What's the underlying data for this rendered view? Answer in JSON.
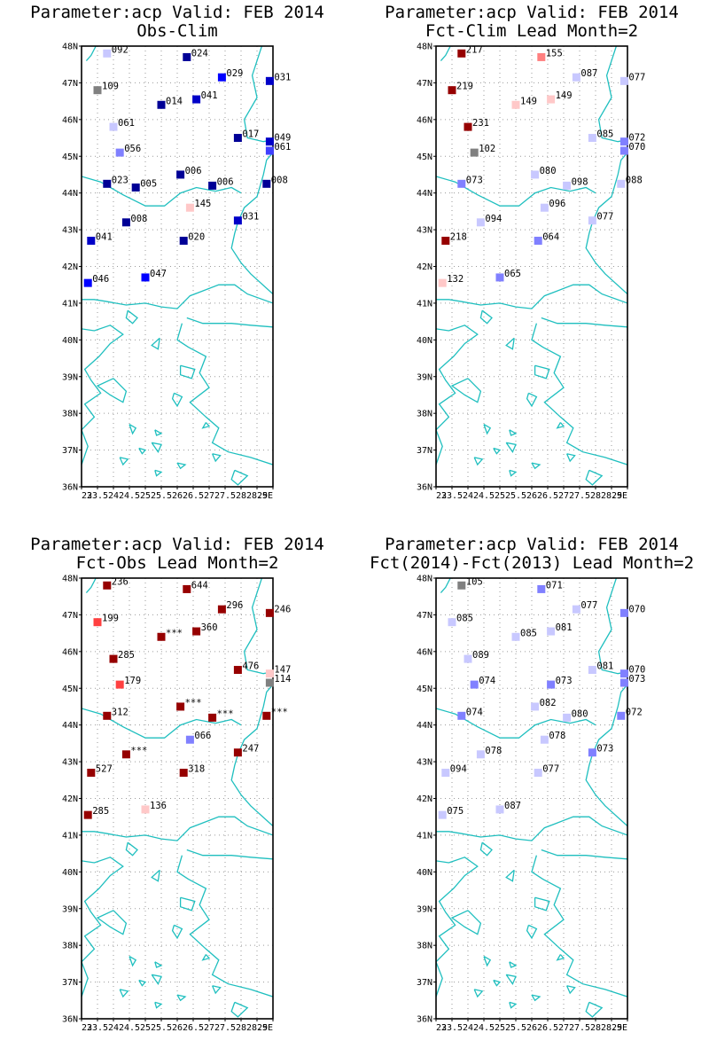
{
  "lat_ticks": [
    "48N",
    "47N",
    "46N",
    "45N",
    "44N",
    "43N",
    "42N",
    "41N",
    "40N",
    "39N",
    "38N",
    "37N",
    "36N"
  ],
  "lon_ticks": [
    "23",
    "23.5",
    "24",
    "24.5",
    "25",
    "25.5",
    "26",
    "26.5",
    "27",
    "27.5",
    "28",
    "28.5",
    "29E"
  ],
  "panels": [
    {
      "title1": "Parameter:acp Valid: FEB 2014",
      "title2": "Obs-Clim",
      "stations": [
        {
          "lon": 23.8,
          "lat": 47.8,
          "label": "092",
          "color": "#c8c8ff"
        },
        {
          "lon": 23.5,
          "lat": 46.8,
          "label": "109",
          "color": "#808080"
        },
        {
          "lon": 24.0,
          "lat": 45.8,
          "label": "061",
          "color": "#c8c8ff"
        },
        {
          "lon": 24.2,
          "lat": 45.1,
          "label": "056",
          "color": "#8080ff"
        },
        {
          "lon": 23.8,
          "lat": 44.25,
          "label": "023",
          "color": "#000096"
        },
        {
          "lon": 24.4,
          "lat": 43.2,
          "label": "008",
          "color": "#000096"
        },
        {
          "lon": 23.3,
          "lat": 42.7,
          "label": "041",
          "color": "#0000c8"
        },
        {
          "lon": 23.2,
          "lat": 41.55,
          "label": "046",
          "color": "#0000ff"
        },
        {
          "lon": 25.0,
          "lat": 41.7,
          "label": "047",
          "color": "#0000ff"
        },
        {
          "lon": 24.7,
          "lat": 44.15,
          "label": "005",
          "color": "#000096"
        },
        {
          "lon": 25.5,
          "lat": 46.4,
          "label": "014",
          "color": "#000096"
        },
        {
          "lon": 26.3,
          "lat": 47.7,
          "label": "024",
          "color": "#000096"
        },
        {
          "lon": 26.6,
          "lat": 46.55,
          "label": "041",
          "color": "#0000c8"
        },
        {
          "lon": 26.1,
          "lat": 44.5,
          "label": "006",
          "color": "#000096"
        },
        {
          "lon": 26.4,
          "lat": 43.6,
          "label": "145",
          "color": "#ffc8c8"
        },
        {
          "lon": 26.2,
          "lat": 42.7,
          "label": "020",
          "color": "#000096"
        },
        {
          "lon": 27.1,
          "lat": 44.2,
          "label": "006",
          "color": "#000096"
        },
        {
          "lon": 27.4,
          "lat": 47.15,
          "label": "029",
          "color": "#0000ff"
        },
        {
          "lon": 27.9,
          "lat": 45.5,
          "label": "017",
          "color": "#000096"
        },
        {
          "lon": 27.9,
          "lat": 43.25,
          "label": "031",
          "color": "#0000c8"
        },
        {
          "lon": 28.8,
          "lat": 44.25,
          "label": "008",
          "color": "#000096"
        },
        {
          "lon": 28.9,
          "lat": 47.05,
          "label": "031",
          "color": "#0000c8"
        },
        {
          "lon": 28.9,
          "lat": 45.4,
          "label": "049",
          "color": "#0000c8"
        },
        {
          "lon": 28.9,
          "lat": 45.15,
          "label": "061",
          "color": "#4040ff"
        }
      ]
    },
    {
      "title1": "Parameter:acp Valid: FEB 2014",
      "title2": "Fct-Clim Lead Month=2",
      "stations": [
        {
          "lon": 23.8,
          "lat": 47.8,
          "label": "217",
          "color": "#960000"
        },
        {
          "lon": 23.5,
          "lat": 46.8,
          "label": "219",
          "color": "#960000"
        },
        {
          "lon": 24.0,
          "lat": 45.8,
          "label": "231",
          "color": "#960000"
        },
        {
          "lon": 24.2,
          "lat": 45.1,
          "label": "102",
          "color": "#808080"
        },
        {
          "lon": 23.8,
          "lat": 44.25,
          "label": "073",
          "color": "#8080ff"
        },
        {
          "lon": 24.4,
          "lat": 43.2,
          "label": "094",
          "color": "#c8c8ff"
        },
        {
          "lon": 23.3,
          "lat": 42.7,
          "label": "218",
          "color": "#960000"
        },
        {
          "lon": 23.2,
          "lat": 41.55,
          "label": "132",
          "color": "#ffc8c8"
        },
        {
          "lon": 25.0,
          "lat": 41.7,
          "label": "065",
          "color": "#8080ff"
        },
        {
          "lon": 25.5,
          "lat": 46.4,
          "label": "149",
          "color": "#ffc8c8"
        },
        {
          "lon": 26.3,
          "lat": 47.7,
          "label": "155",
          "color": "#ff8080"
        },
        {
          "lon": 26.6,
          "lat": 46.55,
          "label": "149",
          "color": "#ffc8c8"
        },
        {
          "lon": 26.1,
          "lat": 44.5,
          "label": "080",
          "color": "#c8c8ff"
        },
        {
          "lon": 26.4,
          "lat": 43.6,
          "label": "096",
          "color": "#c8c8ff"
        },
        {
          "lon": 26.2,
          "lat": 42.7,
          "label": "064",
          "color": "#8080ff"
        },
        {
          "lon": 27.1,
          "lat": 44.2,
          "label": "098",
          "color": "#c8c8ff"
        },
        {
          "lon": 27.4,
          "lat": 47.15,
          "label": "087",
          "color": "#c8c8ff"
        },
        {
          "lon": 27.9,
          "lat": 45.5,
          "label": "085",
          "color": "#c8c8ff"
        },
        {
          "lon": 27.9,
          "lat": 43.25,
          "label": "077",
          "color": "#c8c8ff"
        },
        {
          "lon": 28.8,
          "lat": 44.25,
          "label": "088",
          "color": "#c8c8ff"
        },
        {
          "lon": 28.9,
          "lat": 47.05,
          "label": "077",
          "color": "#c8c8ff"
        },
        {
          "lon": 28.9,
          "lat": 45.4,
          "label": "072",
          "color": "#8080ff"
        },
        {
          "lon": 28.9,
          "lat": 45.15,
          "label": "070",
          "color": "#8080ff"
        }
      ]
    },
    {
      "title1": "Parameter:acp Valid: FEB 2014",
      "title2": "Fct-Obs Lead Month=2",
      "stations": [
        {
          "lon": 23.8,
          "lat": 47.8,
          "label": "236",
          "color": "#960000"
        },
        {
          "lon": 23.5,
          "lat": 46.8,
          "label": "199",
          "color": "#ff4040"
        },
        {
          "lon": 24.0,
          "lat": 45.8,
          "label": "285",
          "color": "#960000"
        },
        {
          "lon": 24.2,
          "lat": 45.1,
          "label": "179",
          "color": "#ff4040"
        },
        {
          "lon": 23.8,
          "lat": 44.25,
          "label": "312",
          "color": "#960000"
        },
        {
          "lon": 24.4,
          "lat": 43.2,
          "label": "***",
          "color": "#960000"
        },
        {
          "lon": 23.3,
          "lat": 42.7,
          "label": "527",
          "color": "#960000"
        },
        {
          "lon": 23.2,
          "lat": 41.55,
          "label": "285",
          "color": "#960000"
        },
        {
          "lon": 25.0,
          "lat": 41.7,
          "label": "136",
          "color": "#ffc8c8"
        },
        {
          "lon": 25.5,
          "lat": 46.4,
          "label": "***",
          "color": "#960000"
        },
        {
          "lon": 26.3,
          "lat": 47.7,
          "label": "644",
          "color": "#960000"
        },
        {
          "lon": 26.6,
          "lat": 46.55,
          "label": "360",
          "color": "#960000"
        },
        {
          "lon": 26.1,
          "lat": 44.5,
          "label": "***",
          "color": "#960000"
        },
        {
          "lon": 26.4,
          "lat": 43.6,
          "label": "066",
          "color": "#8080ff"
        },
        {
          "lon": 26.2,
          "lat": 42.7,
          "label": "318",
          "color": "#960000"
        },
        {
          "lon": 27.1,
          "lat": 44.2,
          "label": "***",
          "color": "#960000"
        },
        {
          "lon": 27.4,
          "lat": 47.15,
          "label": "296",
          "color": "#960000"
        },
        {
          "lon": 27.9,
          "lat": 45.5,
          "label": "476",
          "color": "#960000"
        },
        {
          "lon": 27.9,
          "lat": 43.25,
          "label": "247",
          "color": "#960000"
        },
        {
          "lon": 28.8,
          "lat": 44.25,
          "label": "***",
          "color": "#960000"
        },
        {
          "lon": 28.9,
          "lat": 47.05,
          "label": "246",
          "color": "#960000"
        },
        {
          "lon": 28.9,
          "lat": 45.4,
          "label": "147",
          "color": "#ffc8c8"
        },
        {
          "lon": 28.9,
          "lat": 45.15,
          "label": "114",
          "color": "#808080"
        }
      ]
    },
    {
      "title1": "Parameter:acp Valid: FEB 2014",
      "title2": "Fct(2014)-Fct(2013) Lead Month=2",
      "stations": [
        {
          "lon": 23.8,
          "lat": 47.8,
          "label": "105",
          "color": "#808080"
        },
        {
          "lon": 23.5,
          "lat": 46.8,
          "label": "085",
          "color": "#c8c8ff"
        },
        {
          "lon": 24.0,
          "lat": 45.8,
          "label": "089",
          "color": "#c8c8ff"
        },
        {
          "lon": 24.2,
          "lat": 45.1,
          "label": "074",
          "color": "#8080ff"
        },
        {
          "lon": 23.8,
          "lat": 44.25,
          "label": "074",
          "color": "#8080ff"
        },
        {
          "lon": 24.4,
          "lat": 43.2,
          "label": "078",
          "color": "#c8c8ff"
        },
        {
          "lon": 23.3,
          "lat": 42.7,
          "label": "094",
          "color": "#c8c8ff"
        },
        {
          "lon": 23.2,
          "lat": 41.55,
          "label": "075",
          "color": "#c8c8ff"
        },
        {
          "lon": 25.0,
          "lat": 41.7,
          "label": "087",
          "color": "#c8c8ff"
        },
        {
          "lon": 25.5,
          "lat": 46.4,
          "label": "085",
          "color": "#c8c8ff"
        },
        {
          "lon": 26.3,
          "lat": 47.7,
          "label": "071",
          "color": "#8080ff"
        },
        {
          "lon": 26.6,
          "lat": 46.55,
          "label": "081",
          "color": "#c8c8ff"
        },
        {
          "lon": 26.6,
          "lat": 45.1,
          "label": "073",
          "color": "#8080ff"
        },
        {
          "lon": 26.1,
          "lat": 44.5,
          "label": "082",
          "color": "#c8c8ff"
        },
        {
          "lon": 26.4,
          "lat": 43.6,
          "label": "078",
          "color": "#c8c8ff"
        },
        {
          "lon": 26.2,
          "lat": 42.7,
          "label": "077",
          "color": "#c8c8ff"
        },
        {
          "lon": 27.1,
          "lat": 44.2,
          "label": "080",
          "color": "#c8c8ff"
        },
        {
          "lon": 27.4,
          "lat": 47.15,
          "label": "077",
          "color": "#c8c8ff"
        },
        {
          "lon": 27.9,
          "lat": 45.5,
          "label": "081",
          "color": "#c8c8ff"
        },
        {
          "lon": 27.9,
          "lat": 43.25,
          "label": "073",
          "color": "#8080ff"
        },
        {
          "lon": 28.8,
          "lat": 44.25,
          "label": "072",
          "color": "#8080ff"
        },
        {
          "lon": 28.9,
          "lat": 47.05,
          "label": "070",
          "color": "#8080ff"
        },
        {
          "lon": 28.9,
          "lat": 45.4,
          "label": "070",
          "color": "#8080ff"
        },
        {
          "lon": 28.9,
          "lat": 45.15,
          "label": "073",
          "color": "#8080ff"
        }
      ]
    }
  ]
}
